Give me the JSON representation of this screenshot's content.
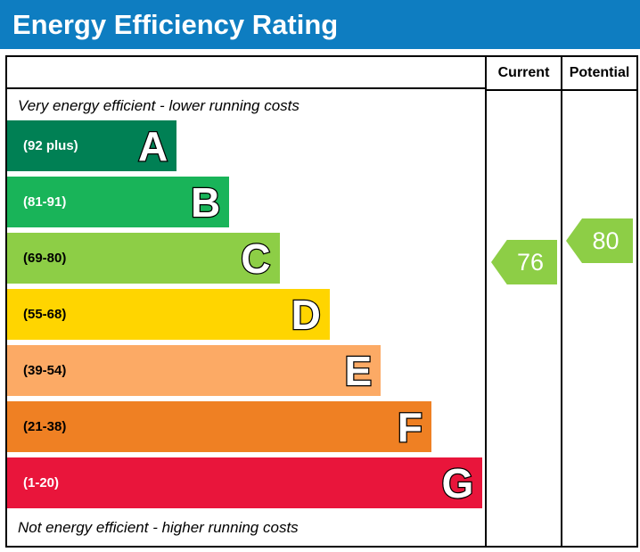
{
  "title": "Energy Efficiency Rating",
  "colors": {
    "title_bg": "#0e7dc1",
    "title_text": "#ffffff",
    "border": "#000000"
  },
  "columns": {
    "current": "Current",
    "potential": "Potential"
  },
  "notes": {
    "top": "Very energy efficient - lower running costs",
    "bottom": "Not energy efficient - higher running costs"
  },
  "chart_data": {
    "type": "bar",
    "subtype": "epc-energy-efficiency-rating",
    "title": "Energy Efficiency Rating",
    "bands": [
      {
        "letter": "A",
        "range_label": "(92 plus)",
        "min": 92,
        "max": 100,
        "color": "#008054",
        "label_color": "#ffffff",
        "width_pct": "35.5%"
      },
      {
        "letter": "B",
        "range_label": "(81-91)",
        "min": 81,
        "max": 91,
        "color": "#19b459",
        "label_color": "#ffffff",
        "width_pct": "46.5%"
      },
      {
        "letter": "C",
        "range_label": "(69-80)",
        "min": 69,
        "max": 80,
        "color": "#8dce46",
        "label_color": "#000000",
        "width_pct": "57.0%"
      },
      {
        "letter": "D",
        "range_label": "(55-68)",
        "min": 55,
        "max": 68,
        "color": "#ffd500",
        "label_color": "#000000",
        "width_pct": "67.5%"
      },
      {
        "letter": "E",
        "range_label": "(39-54)",
        "min": 39,
        "max": 54,
        "color": "#fcaa65",
        "label_color": "#000000",
        "width_pct": "78.2%"
      },
      {
        "letter": "F",
        "range_label": "(21-38)",
        "min": 21,
        "max": 38,
        "color": "#ef8023",
        "label_color": "#000000",
        "width_pct": "88.8%"
      },
      {
        "letter": "G",
        "range_label": "(1-20)",
        "min": 1,
        "max": 20,
        "color": "#e9153b",
        "label_color": "#ffffff",
        "width_pct": "99.5%"
      }
    ],
    "current": {
      "label": "Current",
      "value": 76,
      "band": "C",
      "color": "#8dce46"
    },
    "potential": {
      "label": "Potential",
      "value": 80,
      "band": "C",
      "color": "#8dce46"
    }
  }
}
